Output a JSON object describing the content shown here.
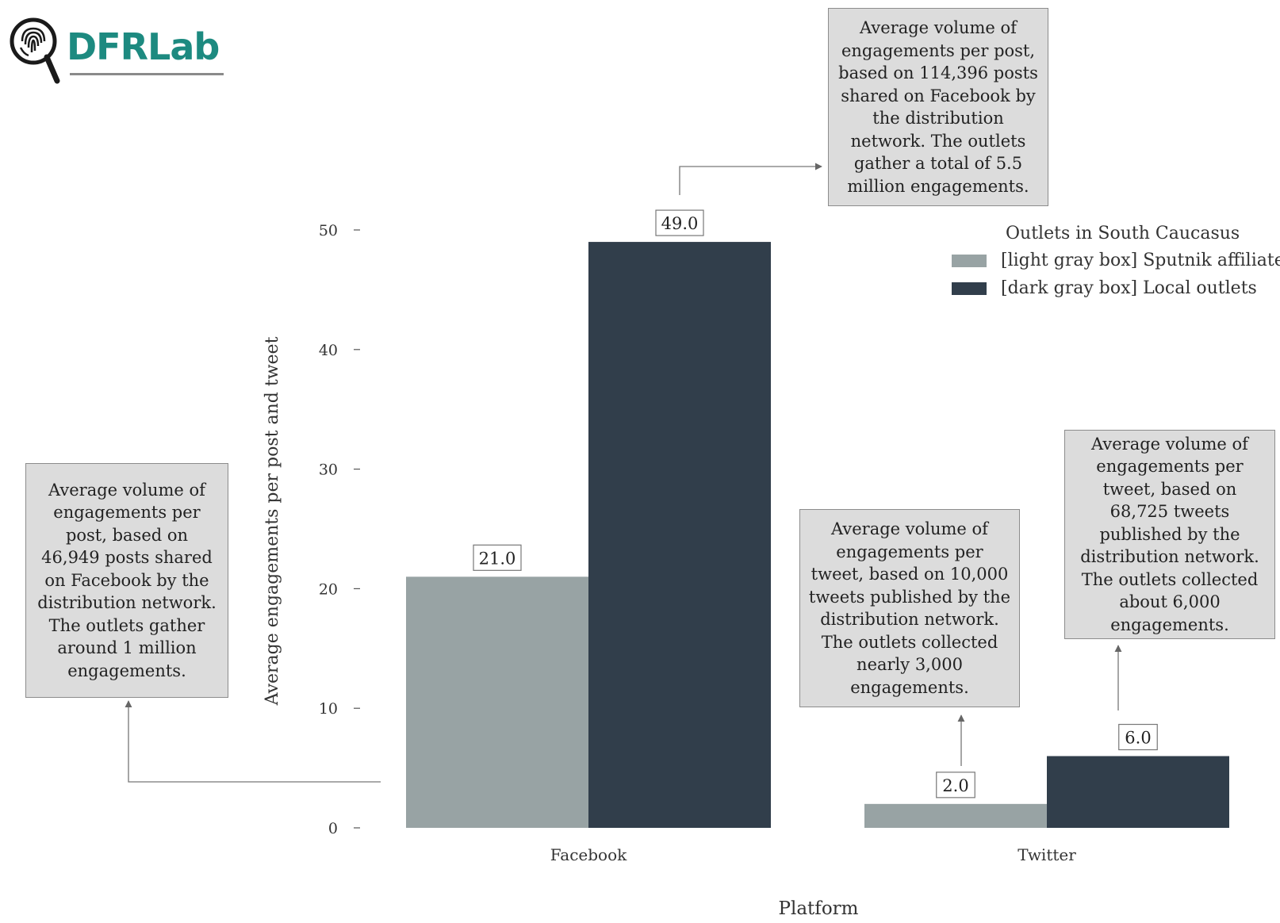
{
  "logo": {
    "text": "DFRLab",
    "icon": "fingerprint-magnifier-icon"
  },
  "chart_data": {
    "type": "bar",
    "categories": [
      "Facebook",
      "Twitter"
    ],
    "series": [
      {
        "name": "[light gray box] Sputnik affiliates",
        "values": [
          21.0,
          2.0
        ],
        "color": "#98a3a4"
      },
      {
        "name": "[dark gray box] Local outlets",
        "values": [
          49.0,
          6.0
        ],
        "color": "#313e4b"
      }
    ],
    "value_labels": [
      [
        "21.0",
        "2.0"
      ],
      [
        "49.0",
        "6.0"
      ]
    ],
    "xlabel": "Platform",
    "ylabel": "Average engagements per post and tweet",
    "ylim": [
      0,
      50
    ],
    "yticks": [
      0,
      10,
      20,
      30,
      40,
      50
    ],
    "legend_title": "Outlets in South Caucasus",
    "legend_position": "top-right",
    "grid": false
  },
  "annotations": {
    "facebook_sputnik": "Average volume of engagements per post, based on 46,949 posts shared on Facebook by the distribution network. The outlets gather around 1 million engagements.",
    "facebook_local": "Average volume of engagements per post, based on 114,396 posts shared on Facebook by the distribution network. The outlets gather a total of 5.5 million engagements.",
    "twitter_sputnik": "Average volume of engagements per tweet, based on 10,000 tweets published by the distribution network. The outlets collected nearly 3,000 engagements.",
    "twitter_local": "Average volume of engagements per tweet, based on 68,725 tweets published by the distribution network. The outlets collected about 6,000 engagements."
  }
}
